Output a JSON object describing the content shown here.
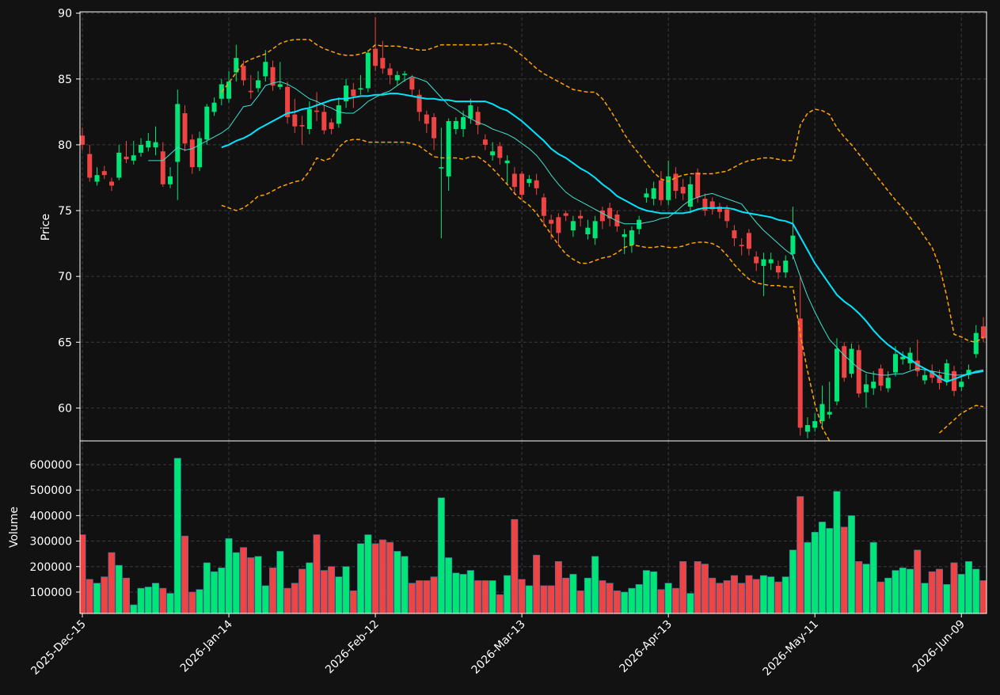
{
  "chart_data": {
    "type": "candlestick",
    "categories": [
      "2025-Dec-15",
      null,
      null,
      null,
      null,
      null,
      null,
      null,
      null,
      null,
      null,
      null,
      null,
      null,
      null,
      null,
      null,
      null,
      null,
      null,
      "2026-Jan-14",
      null,
      null,
      null,
      null,
      null,
      null,
      null,
      null,
      null,
      null,
      null,
      null,
      null,
      null,
      null,
      null,
      null,
      null,
      null,
      "2026-Feb-12",
      null,
      null,
      null,
      null,
      null,
      null,
      null,
      null,
      null,
      null,
      null,
      null,
      null,
      null,
      null,
      null,
      null,
      null,
      null,
      "2026-Mar-13",
      null,
      null,
      null,
      null,
      null,
      null,
      null,
      null,
      null,
      null,
      null,
      null,
      null,
      null,
      null,
      null,
      null,
      null,
      null,
      "2026-Apr-13",
      null,
      null,
      null,
      null,
      null,
      null,
      null,
      null,
      null,
      null,
      null,
      null,
      null,
      null,
      null,
      null,
      null,
      null,
      null,
      "2026-May-11",
      null,
      null,
      null,
      null,
      null,
      null,
      null,
      null,
      null,
      null,
      null,
      null,
      null,
      null,
      null,
      null,
      null,
      null,
      null,
      "2026-Jun-09",
      null,
      null,
      null
    ],
    "open": [
      80.7,
      79.3,
      77.2,
      78.0,
      77.2,
      77.5,
      79.1,
      78.8,
      79.4,
      79.8,
      79.8,
      79.5,
      77.0,
      78.7,
      82.4,
      80.4,
      78.3,
      80.4,
      82.5,
      83.5,
      83.5,
      85.5,
      86.0,
      84.1,
      84.3,
      85.2,
      85.9,
      84.4,
      84.4,
      82.3,
      81.5,
      81.2,
      82.6,
      82.5,
      81.7,
      81.6,
      83.3,
      84.2,
      84.2,
      84.3,
      87.3,
      86.6,
      85.8,
      84.9,
      85.3,
      85.1,
      83.8,
      82.3,
      82.1,
      78.2,
      77.6,
      81.2,
      81.2,
      82.0,
      82.5,
      80.4,
      79.2,
      79.9,
      78.6,
      77.8,
      77.8,
      77.1,
      77.3,
      76.0,
      74.3,
      74.5,
      74.8,
      73.5,
      74.6,
      73.2,
      72.9,
      75.0,
      75.2,
      74.7,
      73.0,
      72.4,
      73.6,
      76.0,
      75.9,
      77.3,
      75.8,
      77.8,
      76.8,
      75.3,
      77.9,
      75.9,
      75.7,
      75.3,
      75.1,
      73.5,
      72.4,
      73.3,
      71.5,
      70.8,
      71.0,
      70.8,
      70.3,
      71.7,
      66.8,
      58.2,
      58.5,
      59.0,
      59.5,
      60.5,
      64.7,
      62.6,
      64.4,
      61.2,
      61.5,
      63.0,
      61.5,
      62.7,
      63.7,
      63.4,
      63.6,
      62.1,
      62.8,
      62.5,
      62.0,
      62.8,
      61.6,
      62.5,
      64.1,
      66.2
    ],
    "high": [
      81.3,
      80.0,
      78.3,
      78.4,
      77.5,
      80.0,
      80.3,
      80.3,
      80.5,
      80.9,
      81.4,
      80.2,
      78.3,
      84.2,
      83.0,
      80.8,
      81.0,
      83.1,
      83.6,
      85.0,
      85.6,
      87.6,
      86.4,
      85.3,
      85.6,
      87.2,
      86.4,
      86.3,
      84.8,
      83.5,
      82.2,
      83.3,
      84.0,
      83.1,
      82.0,
      83.6,
      85.0,
      84.7,
      85.3,
      87.2,
      89.7,
      87.9,
      86.2,
      85.6,
      85.6,
      85.3,
      84.2,
      82.6,
      82.4,
      81.3,
      82.0,
      82.1,
      82.6,
      83.5,
      82.9,
      80.8,
      80.2,
      80.2,
      79.2,
      78.3,
      78.0,
      77.7,
      77.8,
      76.3,
      74.7,
      74.8,
      75.0,
      74.6,
      75.0,
      74.3,
      74.6,
      75.3,
      75.6,
      75.0,
      73.6,
      73.8,
      74.6,
      76.7,
      77.2,
      78.0,
      78.8,
      78.3,
      77.4,
      77.6,
      78.2,
      76.3,
      76.0,
      75.6,
      75.4,
      73.9,
      72.9,
      73.6,
      71.9,
      71.8,
      71.8,
      71.2,
      71.6,
      75.3,
      70.0,
      59.3,
      59.6,
      61.7,
      62.0,
      65.3,
      65.0,
      64.9,
      64.8,
      62.6,
      62.8,
      63.3,
      62.8,
      64.7,
      64.3,
      64.6,
      65.2,
      62.9,
      63.3,
      62.9,
      63.7,
      63.2,
      62.4,
      63.3,
      66.3,
      66.9
    ],
    "low": [
      79.6,
      77.2,
      76.9,
      77.4,
      76.5,
      77.3,
      78.6,
      78.5,
      79.1,
      79.5,
      79.2,
      76.8,
      76.7,
      75.8,
      79.5,
      77.8,
      78.0,
      80.0,
      82.2,
      83.0,
      83.2,
      84.8,
      84.5,
      83.5,
      84.0,
      84.8,
      84.1,
      84.2,
      81.6,
      80.9,
      80.0,
      80.8,
      81.8,
      80.8,
      80.8,
      81.3,
      82.8,
      82.8,
      83.8,
      84.0,
      85.6,
      85.4,
      84.6,
      84.5,
      84.8,
      83.7,
      81.8,
      80.9,
      79.6,
      72.9,
      76.5,
      80.8,
      80.6,
      81.6,
      80.8,
      79.6,
      78.8,
      78.5,
      77.0,
      76.2,
      75.8,
      76.8,
      76.2,
      73.8,
      72.8,
      72.3,
      74.2,
      73.0,
      73.8,
      72.8,
      72.4,
      73.6,
      73.8,
      73.4,
      71.7,
      71.8,
      73.2,
      75.6,
      75.4,
      75.4,
      75.4,
      75.9,
      75.8,
      74.8,
      75.6,
      74.6,
      74.7,
      74.4,
      73.7,
      72.3,
      71.6,
      71.6,
      70.4,
      68.5,
      70.5,
      69.8,
      69.9,
      71.3,
      57.9,
      57.7,
      58.2,
      58.6,
      59.2,
      60.2,
      62.0,
      62.3,
      60.8,
      60.0,
      61.0,
      61.3,
      61.2,
      62.4,
      63.3,
      62.9,
      62.4,
      61.8,
      61.9,
      61.4,
      61.7,
      60.9,
      61.3,
      62.2,
      63.8,
      65.0
    ],
    "close": [
      80.0,
      77.5,
      77.7,
      77.7,
      76.9,
      79.4,
      78.9,
      79.2,
      80.0,
      80.3,
      80.2,
      77.0,
      77.6,
      83.1,
      80.1,
      78.3,
      80.5,
      82.9,
      83.2,
      84.6,
      84.8,
      86.6,
      84.9,
      84.0,
      84.9,
      86.3,
      84.5,
      84.6,
      82.1,
      81.4,
      81.4,
      82.7,
      82.5,
      81.1,
      81.2,
      83.0,
      84.5,
      83.7,
      84.3,
      87.0,
      86.0,
      85.8,
      85.3,
      85.3,
      85.4,
      84.2,
      82.5,
      81.6,
      80.5,
      78.3,
      81.8,
      81.8,
      82.1,
      83.0,
      81.5,
      80.0,
      79.5,
      79.0,
      78.8,
      76.8,
      76.2,
      77.4,
      76.7,
      74.6,
      74.0,
      73.3,
      74.6,
      74.2,
      74.4,
      73.7,
      74.2,
      74.2,
      74.4,
      73.8,
      73.2,
      73.5,
      74.3,
      76.3,
      76.7,
      75.8,
      77.6,
      76.5,
      76.3,
      77.0,
      76.0,
      75.0,
      75.1,
      74.9,
      74.2,
      72.9,
      72.3,
      72.1,
      71.0,
      71.3,
      71.3,
      70.3,
      71.2,
      73.1,
      58.5,
      58.7,
      59.0,
      60.3,
      59.7,
      64.5,
      62.3,
      64.5,
      61.1,
      61.8,
      62.0,
      61.7,
      62.3,
      64.1,
      63.9,
      64.2,
      62.8,
      62.5,
      62.3,
      61.9,
      63.4,
      61.3,
      62.0,
      62.9,
      65.7,
      65.3
    ],
    "up_color": "#00e676",
    "down_color": "#ef4444",
    "ylabel": "Price",
    "ylim": [
      57.5,
      90.1
    ],
    "yticks": [
      60,
      65,
      70,
      75,
      80,
      85,
      90
    ],
    "grid": true,
    "lines": [
      {
        "color": "#40e0d0",
        "width": 1,
        "dash": false,
        "values": [
          null,
          null,
          null,
          null,
          null,
          null,
          null,
          null,
          null,
          78.8,
          78.8,
          78.8,
          79.3,
          79.8,
          79.6,
          79.7,
          80.0,
          80.3,
          80.6,
          80.9,
          81.3,
          82.1,
          82.9,
          83.0,
          83.7,
          84.5,
          84.7,
          84.8,
          84.6,
          84.3,
          83.9,
          83.5,
          83.3,
          83.0,
          82.8,
          82.5,
          82.4,
          82.4,
          82.8,
          83.3,
          83.6,
          83.9,
          84.1,
          84.5,
          84.9,
          85.2,
          85.0,
          84.8,
          84.2,
          83.6,
          83.0,
          82.7,
          82.3,
          82.0,
          81.7,
          81.5,
          81.2,
          81.0,
          80.8,
          80.5,
          80.1,
          79.7,
          79.2,
          78.5,
          77.7,
          77.0,
          76.4,
          76.0,
          75.7,
          75.4,
          75.1,
          74.8,
          74.5,
          74.2,
          74.0,
          74.0,
          74.0,
          74.1,
          74.2,
          74.4,
          74.5,
          74.9,
          75.4,
          75.8,
          76.0,
          76.2,
          76.3,
          76.1,
          75.9,
          75.7,
          75.5,
          74.8,
          74.1,
          73.5,
          73.0,
          72.5,
          72.0,
          71.6,
          70.0,
          68.5,
          67.3,
          66.2,
          65.2,
          64.6,
          64.0,
          63.5,
          63.0,
          62.7,
          62.6,
          62.5,
          62.5,
          62.6,
          62.6,
          62.8,
          63.0,
          62.9,
          62.8,
          62.7,
          62.6,
          62.5,
          62.5,
          62.6,
          62.8,
          62.9
        ]
      },
      {
        "color": "#00e5ff",
        "width": 2,
        "dash": false,
        "values": [
          null,
          null,
          null,
          null,
          null,
          null,
          null,
          null,
          null,
          null,
          null,
          null,
          null,
          null,
          null,
          null,
          null,
          null,
          null,
          79.8,
          80.0,
          80.3,
          80.5,
          80.8,
          81.2,
          81.5,
          81.8,
          82.1,
          82.4,
          82.5,
          82.7,
          82.8,
          83.0,
          83.2,
          83.4,
          83.5,
          83.5,
          83.6,
          83.7,
          83.7,
          83.8,
          83.8,
          83.9,
          83.9,
          83.8,
          83.7,
          83.6,
          83.5,
          83.5,
          83.4,
          83.4,
          83.3,
          83.3,
          83.3,
          83.3,
          83.3,
          83.1,
          82.8,
          82.6,
          82.2,
          81.8,
          81.3,
          80.8,
          80.3,
          79.7,
          79.3,
          79.0,
          78.6,
          78.2,
          77.9,
          77.5,
          77.0,
          76.6,
          76.1,
          75.8,
          75.5,
          75.2,
          75.0,
          74.9,
          74.8,
          74.8,
          74.8,
          74.8,
          74.9,
          75.1,
          75.2,
          75.2,
          75.2,
          75.2,
          75.1,
          74.9,
          74.8,
          74.7,
          74.6,
          74.5,
          74.3,
          74.2,
          74.0,
          73.0,
          72.0,
          71.0,
          70.2,
          69.4,
          68.6,
          68.1,
          67.7,
          67.2,
          66.6,
          65.9,
          65.3,
          64.8,
          64.4,
          64.0,
          63.7,
          63.3,
          63.0,
          62.7,
          62.3,
          62.0,
          62.2,
          62.4,
          62.6,
          62.7,
          62.8
        ]
      },
      {
        "color": "#ffa500",
        "width": 1.5,
        "dash": true,
        "values": [
          null,
          null,
          null,
          null,
          null,
          null,
          null,
          null,
          null,
          null,
          null,
          null,
          null,
          null,
          null,
          null,
          null,
          null,
          null,
          84.0,
          84.7,
          85.5,
          86.2,
          86.5,
          86.7,
          86.9,
          87.3,
          87.7,
          87.9,
          88.0,
          88.0,
          88.0,
          87.6,
          87.3,
          87.1,
          86.9,
          86.8,
          86.8,
          86.9,
          87.1,
          87.6,
          87.5,
          87.5,
          87.5,
          87.4,
          87.3,
          87.2,
          87.2,
          87.4,
          87.6,
          87.6,
          87.6,
          87.6,
          87.6,
          87.6,
          87.6,
          87.7,
          87.7,
          87.6,
          87.2,
          86.8,
          86.3,
          85.8,
          85.4,
          85.1,
          84.8,
          84.5,
          84.2,
          84.1,
          84.0,
          84.0,
          83.5,
          82.7,
          81.8,
          80.8,
          80.0,
          79.3,
          78.6,
          77.9,
          77.4,
          77.2,
          77.5,
          77.7,
          77.8,
          77.8,
          77.8,
          77.8,
          77.9,
          78.0,
          78.3,
          78.6,
          78.8,
          78.9,
          79.0,
          79.0,
          78.9,
          78.8,
          78.8,
          81.5,
          82.4,
          82.7,
          82.6,
          82.3,
          81.3,
          80.6,
          80.0,
          79.3,
          78.6,
          77.9,
          77.2,
          76.5,
          75.8,
          75.2,
          74.5,
          73.8,
          73.0,
          72.2,
          70.8,
          68.5,
          65.6,
          65.4,
          65.1,
          65.0,
          65.4
        ]
      },
      {
        "color": "#ffa500",
        "width": 1.5,
        "dash": true,
        "values": [
          null,
          null,
          null,
          null,
          null,
          null,
          null,
          null,
          null,
          null,
          null,
          null,
          null,
          null,
          null,
          null,
          null,
          null,
          null,
          75.4,
          75.2,
          75.0,
          75.2,
          75.6,
          76.1,
          76.2,
          76.5,
          76.8,
          77.0,
          77.2,
          77.3,
          78.0,
          79.0,
          78.8,
          79.0,
          79.8,
          80.3,
          80.4,
          80.4,
          80.2,
          80.2,
          80.2,
          80.2,
          80.2,
          80.2,
          80.1,
          79.9,
          79.5,
          79.1,
          79.0,
          79.0,
          79.0,
          78.9,
          79.1,
          79.1,
          78.7,
          78.2,
          77.6,
          77.0,
          76.3,
          75.8,
          75.4,
          74.8,
          74.0,
          73.2,
          72.4,
          71.7,
          71.3,
          71.0,
          71.0,
          71.2,
          71.4,
          71.5,
          71.8,
          72.2,
          72.4,
          72.3,
          72.2,
          72.2,
          72.3,
          72.2,
          72.2,
          72.3,
          72.5,
          72.6,
          72.6,
          72.5,
          72.2,
          71.6,
          70.9,
          70.3,
          69.8,
          69.5,
          69.4,
          69.3,
          69.3,
          69.2,
          69.2,
          65.6,
          62.8,
          60.3,
          58.5,
          57.5,
          null,
          null,
          null,
          null,
          null,
          null,
          null,
          null,
          null,
          null,
          null,
          null,
          null,
          null,
          58.1,
          58.6,
          59.1,
          59.6,
          59.9,
          60.2,
          60.1
        ]
      }
    ],
    "volume": {
      "ylabel": "Volume",
      "ylim": [
        16000,
        693000
      ],
      "yticks": [
        100000,
        200000,
        300000,
        400000,
        500000,
        600000
      ],
      "values": [
        325000,
        150000,
        135000,
        160000,
        255000,
        205000,
        155000,
        50000,
        115000,
        120000,
        135000,
        115000,
        95000,
        625000,
        320000,
        100000,
        110000,
        215000,
        180000,
        195000,
        310000,
        255000,
        275000,
        235000,
        240000,
        125000,
        195000,
        260000,
        115000,
        135000,
        190000,
        215000,
        325000,
        185000,
        200000,
        160000,
        200000,
        105000,
        290000,
        325000,
        290000,
        305000,
        295000,
        260000,
        240000,
        135000,
        145000,
        145000,
        160000,
        470000,
        235000,
        175000,
        170000,
        185000,
        145000,
        145000,
        145000,
        90000,
        165000,
        385000,
        150000,
        125000,
        245000,
        125000,
        125000,
        220000,
        155000,
        170000,
        105000,
        155000,
        240000,
        145000,
        135000,
        105000,
        100000,
        115000,
        130000,
        185000,
        180000,
        110000,
        135000,
        115000,
        220000,
        95000,
        220000,
        210000,
        155000,
        135000,
        145000,
        165000,
        135000,
        165000,
        150000,
        165000,
        160000,
        140000,
        160000,
        265000,
        475000,
        295000,
        335000,
        375000,
        350000,
        495000,
        355000,
        400000,
        220000,
        210000,
        295000,
        140000,
        155000,
        185000,
        195000,
        190000,
        265000,
        135000,
        180000,
        190000,
        130000,
        215000,
        170000,
        220000,
        190000,
        145000
      ]
    }
  }
}
